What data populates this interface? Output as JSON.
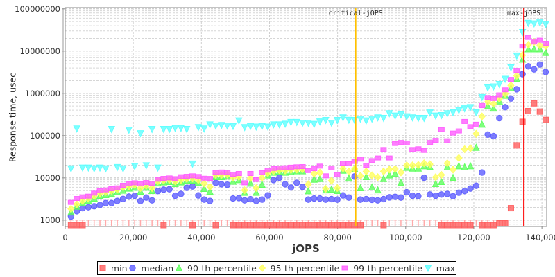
{
  "chart_data": {
    "type": "scatter",
    "title": "",
    "xlabel": "jOPS",
    "ylabel": "Response time, usec",
    "xscale": "linear",
    "yscale": "log",
    "xlim": [
      0,
      141400
    ],
    "ylim": [
      708,
      107000000
    ],
    "grid": true,
    "legend_position": "bottom",
    "xticks": [
      "0",
      "20,000",
      "40,000",
      "60,000",
      "80,000",
      "100,000",
      "120,000",
      "140,000"
    ],
    "xtick_values": [
      0,
      20000,
      40000,
      60000,
      80000,
      100000,
      120000,
      140000
    ],
    "yticks": [
      "1000",
      "10000",
      "100000",
      "1000000",
      "10000000",
      "100000000"
    ],
    "ytick_values": [
      1000,
      10000,
      100000,
      1000000,
      10000000,
      100000000
    ],
    "x_start": 1700,
    "x_step": 1700,
    "annotations": [
      {
        "label": "critical-jOPS",
        "x": 85300,
        "color": "#ffc000"
      },
      {
        "label": "max-jOPS",
        "x": 134700,
        "color": "#ff0000"
      }
    ],
    "series": [
      {
        "name": "min",
        "shape": "square",
        "color": "#ff5a5a",
        "values": [
          740,
          740,
          740,
          null,
          null,
          null,
          null,
          null,
          null,
          null,
          null,
          null,
          null,
          null,
          null,
          null,
          740,
          null,
          null,
          null,
          null,
          740,
          null,
          null,
          null,
          740,
          null,
          null,
          740,
          740,
          740,
          740,
          740,
          740,
          740,
          740,
          740,
          740,
          740,
          740,
          740,
          740,
          740,
          740,
          740,
          740,
          740,
          740,
          740,
          740,
          740,
          null,
          null,
          null,
          740,
          null,
          null,
          null,
          null,
          null,
          null,
          null,
          null,
          null,
          740,
          740,
          740,
          740,
          740,
          740,
          null,
          740,
          740,
          740,
          840,
          840,
          1920,
          58800,
          212000,
          379000,
          580000,
          370000,
          235000
        ]
      },
      {
        "name": "median",
        "shape": "circle",
        "color": "#5a5aff",
        "values": [
          1220,
          1630,
          1920,
          2020,
          2130,
          2290,
          2540,
          2540,
          2850,
          3180,
          3610,
          3790,
          2840,
          3430,
          2950,
          4880,
          5270,
          5400,
          3790,
          4190,
          5820,
          6290,
          3850,
          3070,
          2850,
          7660,
          7100,
          6900,
          3260,
          3340,
          2950,
          3140,
          2850,
          3070,
          3850,
          8920,
          10100,
          7100,
          5900,
          7660,
          6130,
          3070,
          3260,
          3260,
          3070,
          3150,
          3070,
          3850,
          3430,
          10800,
          3070,
          3150,
          3040,
          2950,
          3150,
          3470,
          3560,
          3430,
          4580,
          3790,
          3700,
          10100,
          4040,
          3790,
          4040,
          4190,
          3700,
          4470,
          4880,
          5610,
          6520,
          13400,
          106000,
          97700,
          259000,
          470000,
          755000,
          1250000,
          2850000,
          4360000,
          3700000,
          4820000,
          3200000
        ]
      },
      {
        "name": "90-th percentile",
        "shape": "triangle-up",
        "color": "#5aff5a",
        "values": [
          1530,
          2100,
          2540,
          2880,
          3260,
          3790,
          3940,
          4190,
          4640,
          5010,
          5610,
          5900,
          4760,
          5900,
          4940,
          7470,
          7880,
          8060,
          7200,
          7880,
          8700,
          8700,
          7660,
          5540,
          4760,
          10500,
          10500,
          10800,
          8190,
          8920,
          4470,
          7370,
          4470,
          6960,
          11500,
          13400,
          14000,
          13400,
          13800,
          14400,
          14400,
          4880,
          9150,
          9500,
          5100,
          5300,
          4940,
          14900,
          9720,
          16200,
          5750,
          10500,
          5970,
          5100,
          9500,
          11500,
          12600,
          7660,
          17400,
          16700,
          16700,
          19000,
          18300,
          7200,
          8060,
          17900,
          10100,
          19000,
          17900,
          19000,
          51800,
          183000,
          500000,
          439000,
          645000,
          884000,
          1330000,
          2220000,
          6300000,
          11100000,
          11100000,
          11100000,
          9100000
        ]
      },
      {
        "name": "95-th percentile",
        "shape": "diamond",
        "color": "#ffff5a",
        "values": [
          1850,
          2380,
          2880,
          3260,
          3700,
          4300,
          4640,
          4940,
          5300,
          5970,
          6290,
          6800,
          5750,
          6520,
          5750,
          8360,
          8700,
          9030,
          8290,
          8920,
          9500,
          9720,
          8920,
          7370,
          6130,
          11800,
          11800,
          12000,
          10100,
          10500,
          5100,
          9840,
          5750,
          10100,
          13000,
          14400,
          15200,
          14900,
          15400,
          15700,
          16000,
          7100,
          12600,
          13400,
          5540,
          8530,
          5750,
          16700,
          14200,
          16200,
          11200,
          14200,
          11500,
          10400,
          14200,
          15700,
          16200,
          13500,
          19800,
          19800,
          20200,
          22200,
          21000,
          10400,
          11800,
          22200,
          15700,
          29600,
          47600,
          50300,
          110000,
          285000,
          628000,
          567000,
          753000,
          975000,
          1540000,
          2630000,
          8000000,
          14100000,
          16400000,
          13500000,
          13100000
        ]
      },
      {
        "name": "99-th percentile",
        "shape": "rect",
        "color": "#ff5aff",
        "values": [
          2640,
          3260,
          3560,
          3700,
          4360,
          4940,
          5200,
          5540,
          5820,
          6690,
          7200,
          7660,
          7200,
          7760,
          7470,
          9270,
          9740,
          9990,
          9600,
          10650,
          10900,
          11200,
          10800,
          9840,
          9720,
          13500,
          13800,
          13500,
          12200,
          12700,
          7660,
          12700,
          9150,
          13400,
          15200,
          16700,
          17200,
          17400,
          17900,
          18300,
          18500,
          14900,
          16500,
          19000,
          11200,
          17200,
          12000,
          22200,
          21600,
          24500,
          27800,
          19800,
          25600,
          29600,
          47000,
          29600,
          65200,
          69000,
          67000,
          47000,
          48900,
          44700,
          69000,
          77400,
          139000,
          75800,
          115000,
          129000,
          216000,
          163000,
          186000,
          512000,
          796000,
          753000,
          918000,
          1210000,
          2140000,
          3500000,
          13100000,
          21000000,
          16400000,
          18100000,
          15300000
        ]
      },
      {
        "name": "max",
        "shape": "triangle-down",
        "color": "#5affff",
        "values": [
          16700,
          146000,
          17400,
          17400,
          16700,
          17400,
          16700,
          142000,
          17900,
          16700,
          137000,
          19000,
          113000,
          19700,
          142000,
          17400,
          142000,
          142000,
          151000,
          151000,
          142000,
          21600,
          158000,
          146000,
          183000,
          172000,
          177000,
          172000,
          168000,
          227000,
          158000,
          168000,
          162000,
          168000,
          162000,
          183000,
          183000,
          190000,
          208000,
          208000,
          200000,
          200000,
          188000,
          214000,
          232000,
          200000,
          232000,
          267000,
          235000,
          232000,
          250000,
          227000,
          250000,
          267000,
          260000,
          336000,
          295000,
          315000,
          285000,
          267000,
          260000,
          260000,
          350000,
          295000,
          302000,
          336000,
          356000,
          402000,
          439000,
          470000,
          356000,
          810000,
          1370000,
          1450000,
          1650000,
          2190000,
          4100000,
          7800000,
          28000000,
          46100000,
          44800000,
          47300000,
          43500000
        ]
      }
    ]
  }
}
